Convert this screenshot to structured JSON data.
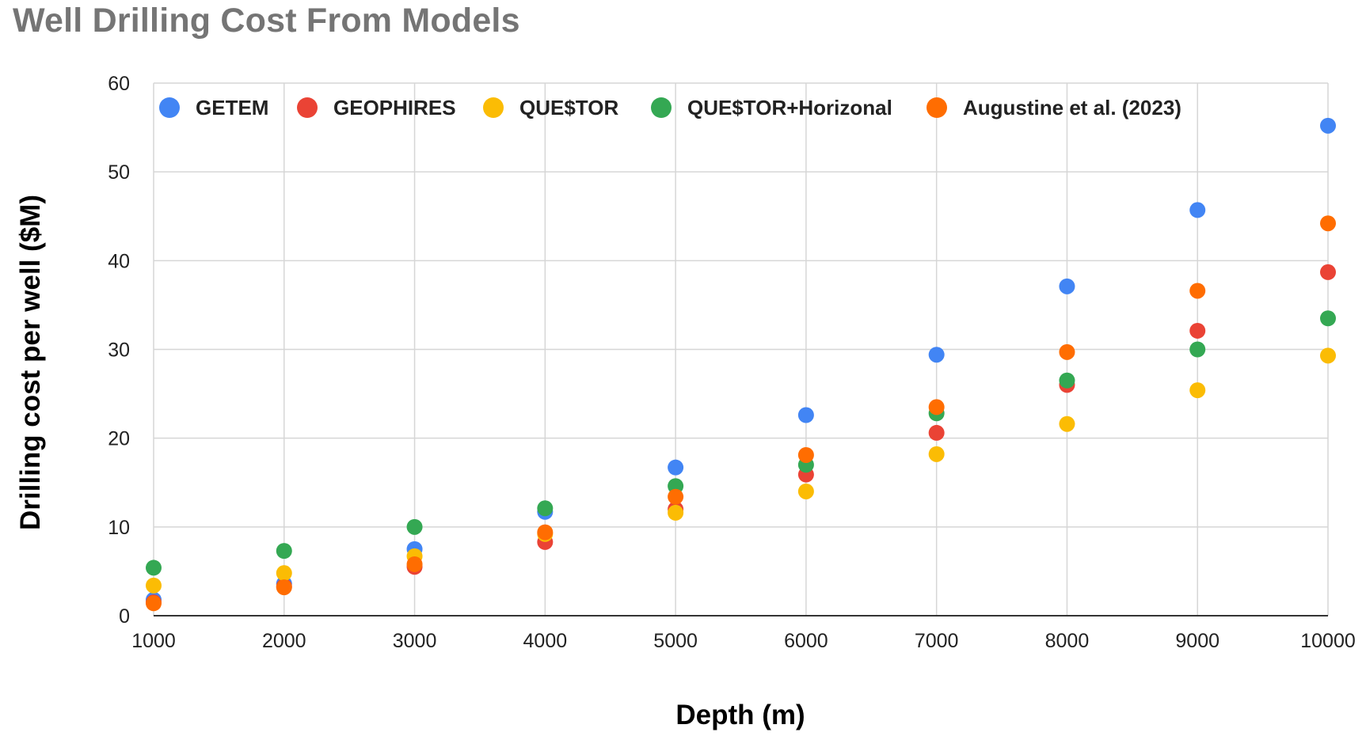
{
  "chart_data": {
    "type": "scatter",
    "title": "Well Drilling Cost From Models",
    "xlabel": "Depth (m)",
    "ylabel": "Drilling cost per well ($M)",
    "xlim": [
      1000,
      10000
    ],
    "ylim": [
      0,
      60
    ],
    "x_ticks": [
      1000,
      2000,
      3000,
      4000,
      5000,
      6000,
      7000,
      8000,
      9000,
      10000
    ],
    "y_ticks": [
      0,
      10,
      20,
      30,
      40,
      50,
      60
    ],
    "grid": true,
    "legend_position": "top",
    "x": [
      1000,
      2000,
      3000,
      4000,
      5000,
      6000,
      7000,
      8000,
      9000,
      10000
    ],
    "series": [
      {
        "name": "GETEM",
        "color": "#4285F4",
        "values": [
          1.8,
          3.6,
          7.5,
          11.7,
          16.7,
          22.6,
          29.4,
          37.1,
          45.7,
          55.2
        ]
      },
      {
        "name": "GEOPHIRES",
        "color": "#EA4335",
        "values": [
          1.5,
          3.3,
          5.5,
          8.3,
          12.0,
          15.9,
          20.6,
          26.0,
          32.1,
          38.7
        ]
      },
      {
        "name": "QUE$TOR",
        "color": "#FBBC04",
        "values": [
          3.4,
          4.8,
          6.7,
          9.2,
          11.6,
          14.0,
          18.2,
          21.6,
          25.4,
          29.3
        ]
      },
      {
        "name": "QUE$TOR+Horizonal",
        "color": "#34A853",
        "values": [
          5.4,
          7.3,
          10.0,
          12.1,
          14.6,
          17.0,
          22.8,
          26.5,
          30.0,
          33.5
        ]
      },
      {
        "name": "Augustine et al. (2023)",
        "color": "#FF6D01",
        "values": [
          1.4,
          3.2,
          5.8,
          9.4,
          13.4,
          18.1,
          23.5,
          29.7,
          36.6,
          44.2
        ]
      }
    ]
  }
}
